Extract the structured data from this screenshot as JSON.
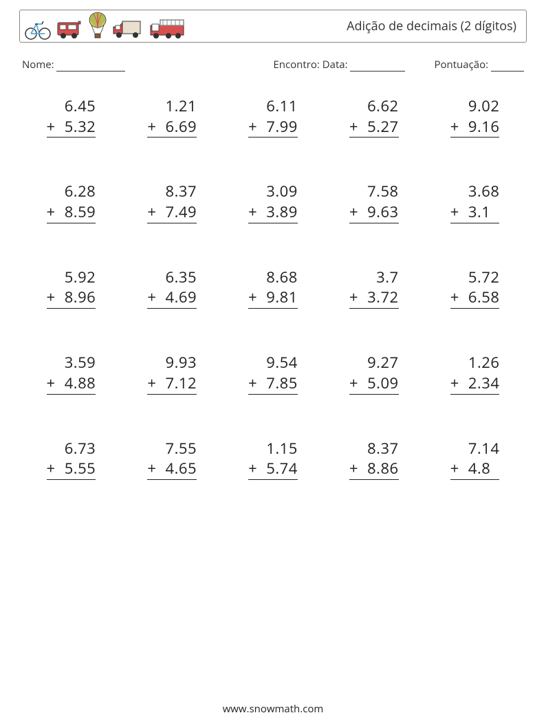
{
  "header": {
    "title": "Adição de decimais (2 dígitos)",
    "icons": [
      "bicycle-icon",
      "van-icon",
      "balloon-icon",
      "truck-icon",
      "firetruck-icon"
    ]
  },
  "info": {
    "name_label": "Nome:",
    "encounter_label": "Encontro:",
    "date_label": "Data:",
    "score_label": "Pontuação:"
  },
  "style": {
    "page_bg": "#ffffff",
    "text_color": "#333333",
    "problem_font_size": 22,
    "columns": 5,
    "rows": 5,
    "operator": "+",
    "underline_color": "#222222",
    "border_color": "#888888"
  },
  "icon_colors": {
    "bicycle": {
      "frame": "#5aa9d6",
      "tire": "#333333"
    },
    "van": {
      "body": "#d94f4f",
      "window": "#ffffff",
      "outline": "#333333"
    },
    "balloon": {
      "envelope_a": "#3aa06f",
      "envelope_b": "#f2c94c",
      "envelope_c": "#d94f4f",
      "basket": "#8a5a33"
    },
    "truck": {
      "cab": "#d94f4f",
      "box": "#e9e0cf",
      "wheel": "#333333"
    },
    "firetruck": {
      "body": "#d94f4f",
      "ladder": "#888888",
      "wheel": "#333333"
    }
  },
  "problems": [
    [
      {
        "a": "6.45",
        "b": "5.32"
      },
      {
        "a": "1.21",
        "b": "6.69"
      },
      {
        "a": "6.11",
        "b": "7.99"
      },
      {
        "a": "6.62",
        "b": "5.27"
      },
      {
        "a": "9.02",
        "b": "9.16"
      }
    ],
    [
      {
        "a": "6.28",
        "b": "8.59"
      },
      {
        "a": "8.37",
        "b": "7.49"
      },
      {
        "a": "3.09",
        "b": "3.89"
      },
      {
        "a": "7.58",
        "b": "9.63"
      },
      {
        "a": "3.68",
        "b": "3.1"
      }
    ],
    [
      {
        "a": "5.92",
        "b": "8.96"
      },
      {
        "a": "6.35",
        "b": "4.69"
      },
      {
        "a": "8.68",
        "b": "9.81"
      },
      {
        "a": "3.7",
        "b": "3.72"
      },
      {
        "a": "5.72",
        "b": "6.58"
      }
    ],
    [
      {
        "a": "3.59",
        "b": "4.88"
      },
      {
        "a": "9.93",
        "b": "7.12"
      },
      {
        "a": "9.54",
        "b": "7.85"
      },
      {
        "a": "9.27",
        "b": "5.09"
      },
      {
        "a": "1.26",
        "b": "2.34"
      }
    ],
    [
      {
        "a": "6.73",
        "b": "5.55"
      },
      {
        "a": "7.55",
        "b": "4.65"
      },
      {
        "a": "1.15",
        "b": "5.74"
      },
      {
        "a": "8.37",
        "b": "8.86"
      },
      {
        "a": "7.14",
        "b": "4.8"
      }
    ]
  ],
  "footer": {
    "url": "www.snowmath.com"
  }
}
